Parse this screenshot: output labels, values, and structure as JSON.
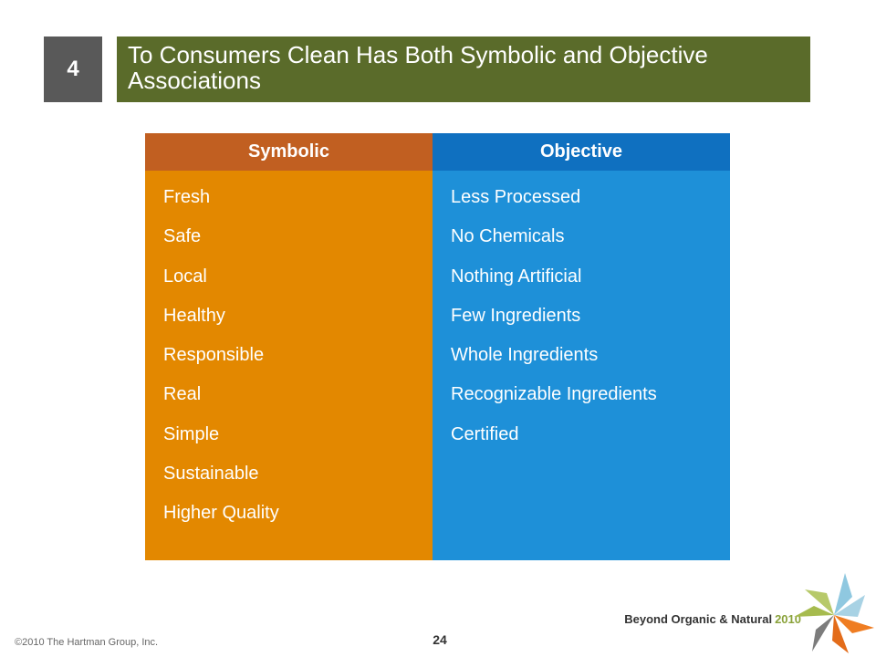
{
  "slide": {
    "number": "4",
    "title": "To Consumers Clean Has Both Symbolic and Objective Associations"
  },
  "table": {
    "columns": [
      {
        "header": "Symbolic",
        "items": [
          "Fresh",
          "Safe",
          "Local",
          "Healthy",
          "Responsible",
          "Real",
          "Simple",
          "Sustainable",
          "Higher Quality"
        ]
      },
      {
        "header": "Objective",
        "items": [
          "Less Processed",
          "No Chemicals",
          "Nothing Artificial",
          "Few Ingredients",
          "Whole Ingredients",
          "Recognizable Ingredients",
          "Certified"
        ]
      }
    ]
  },
  "footer": {
    "copyright": "©2010 The Hartman Group, Inc.",
    "page": "24",
    "brand": "Beyond Organic & Natural",
    "brand_year": "2010"
  },
  "colors": {
    "title_bg": "#5a6b2a",
    "number_bg": "#595959",
    "symbolic_header": "#c15f21",
    "symbolic_body": "#e38800",
    "objective_header": "#0f70c0",
    "objective_body": "#1e90d8"
  },
  "icons": [
    "pinwheel-logo-icon"
  ]
}
